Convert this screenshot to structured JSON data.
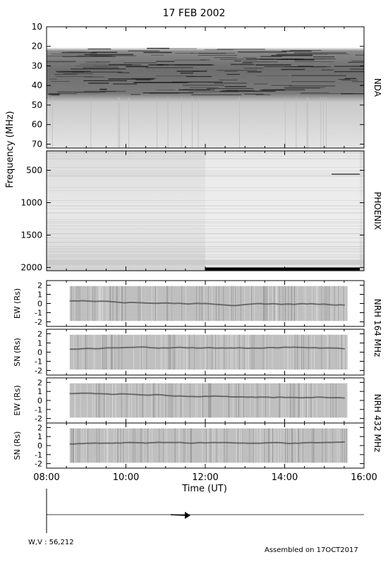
{
  "title": "17 FEB 2002",
  "ylabel_main": "Frequency (MHz)",
  "xlabel": "Time (UT)",
  "footer_left": "W,V :  56,212",
  "footer_right": "Assembled on 17OCT2017",
  "chart_data": {
    "type": "heatmap",
    "x": {
      "label": "Time (UT)",
      "range": [
        "08:00",
        "16:00"
      ],
      "ticks": [
        "08:00",
        "10:00",
        "12:00",
        "14:00",
        "16:00"
      ]
    },
    "panels": [
      {
        "name": "nda",
        "right_label": "NDA",
        "ylabel": "",
        "ylim": [
          10,
          72
        ],
        "ticks": [
          "10",
          "20",
          "30",
          "40",
          "50",
          "60",
          "70"
        ]
      },
      {
        "name": "phoenix",
        "right_label": "PHOENIX",
        "ylabel": "",
        "ylim": [
          200,
          2050
        ],
        "ticks": [
          "500",
          "1000",
          "1500",
          "2000"
        ]
      },
      {
        "name": "nrh164-ew",
        "ylabel": "EW (Rs)",
        "ylim": [
          -2.5,
          2.5
        ],
        "ticks": [
          "2",
          "1",
          "0",
          "-1",
          "-2"
        ]
      },
      {
        "name": "nrh164-sn",
        "ylabel": "SN (Rs)",
        "ylim": [
          -2.5,
          2.5
        ],
        "ticks": [
          "2",
          "1",
          "0",
          "-1",
          "-2"
        ]
      },
      {
        "name": "nrh432-ew",
        "ylabel": "EW (Rs)",
        "ylim": [
          -2.5,
          2.5
        ],
        "ticks": [
          "2",
          "1",
          "0",
          "-1",
          "-2"
        ]
      },
      {
        "name": "nrh432-sn",
        "ylabel": "SN (Rs)",
        "ylim": [
          -2.5,
          2.5
        ],
        "ticks": [
          "2",
          "1",
          "0",
          "-1",
          "-2"
        ]
      }
    ],
    "group_labels": [
      "NRH 164 MHz",
      "NRH 432 MHz"
    ],
    "nrh_data_window": [
      "08:35",
      "15:35"
    ]
  }
}
